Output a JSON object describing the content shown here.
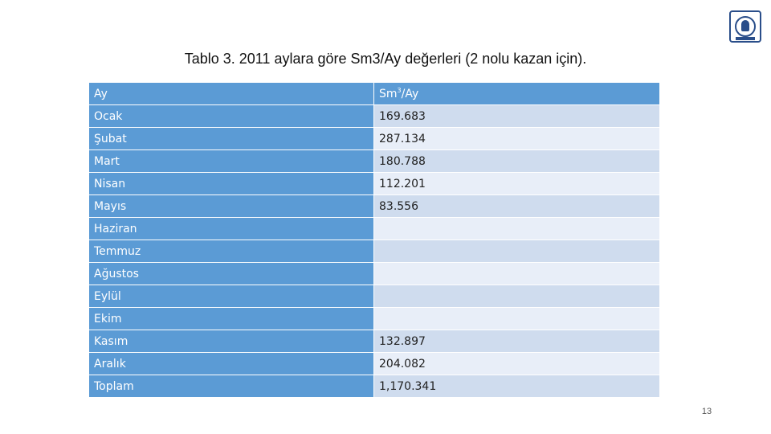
{
  "slide": {
    "title": "Tablo 3. 2011 aylara göre Sm3/Ay değerleri (2 nolu kazan için).",
    "page_number": "13",
    "logo_icon": "university-seal-icon"
  },
  "table": {
    "headers": [
      "Ay",
      "Sm",
      "3",
      "/Ay"
    ],
    "rows": [
      {
        "month": "Ocak",
        "value": "169.683"
      },
      {
        "month": "Şubat",
        "value": "287.134"
      },
      {
        "month": "Mart",
        "value": "180.788"
      },
      {
        "month": "Nisan",
        "value": "112.201"
      },
      {
        "month": "Mayıs",
        "value": "83.556"
      },
      {
        "month": "Haziran",
        "value": ""
      },
      {
        "month": "Temmuz",
        "value": ""
      },
      {
        "month": "Ağustos",
        "value": ""
      },
      {
        "month": "Eylül",
        "value": ""
      },
      {
        "month": "Ekim",
        "value": ""
      },
      {
        "month": "Kasım",
        "value": "132.897"
      },
      {
        "month": "Aralık",
        "value": "204.082"
      },
      {
        "month": "Toplam",
        "value": "1,170.341"
      }
    ]
  },
  "colors": {
    "header_blue": "#5b9bd5",
    "row_band_dark": "#cfdcee",
    "row_band_light": "#e8eef8"
  }
}
